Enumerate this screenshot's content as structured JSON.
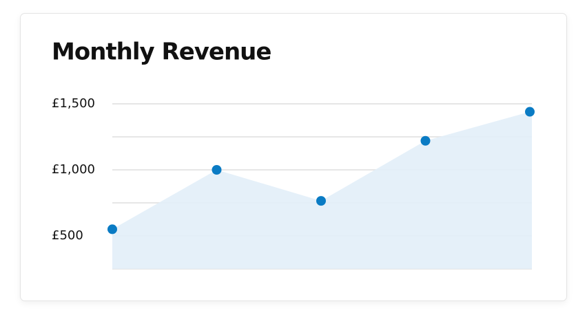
{
  "chart_data": {
    "type": "area",
    "title": "Monthly Revenue",
    "categories": [
      null,
      null,
      null,
      null,
      null
    ],
    "values": [
      550,
      1000,
      765,
      1220,
      1440
    ],
    "color": "#0a7bc4",
    "fill_color": "#e2eef8",
    "ylim": [
      250,
      1500
    ],
    "yticks": [
      {
        "value": 500,
        "label": "£500"
      },
      {
        "value": 1000,
        "label": "£1,000"
      },
      {
        "value": 1500,
        "label": "£1,500"
      }
    ],
    "minor_yticks": [
      250,
      750,
      1250
    ],
    "grid": true
  }
}
